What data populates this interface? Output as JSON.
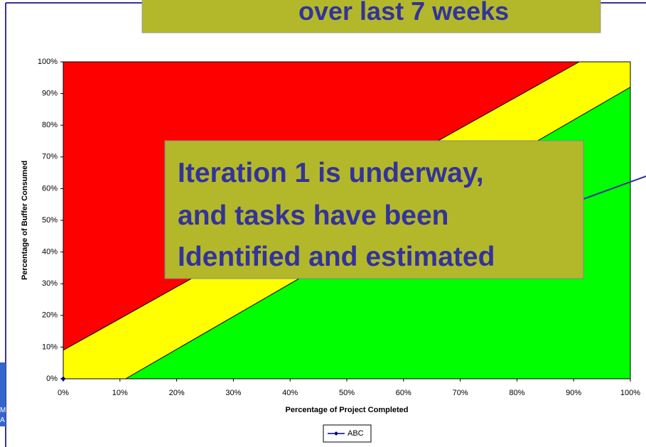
{
  "slide_title": "over last 7 weeks",
  "annotation": [
    "Iteration 1 is underway,",
    "and tasks have been",
    "Identified and estimated"
  ],
  "side_letters": [
    "M",
    "A"
  ],
  "chart_data": {
    "type": "line",
    "xlabel": "Percentage of Project Completed",
    "ylabel": "Percentage of Buffer Consumed",
    "xlim": [
      0,
      100
    ],
    "ylim": [
      0,
      100
    ],
    "xticks": [
      {
        "value": 0,
        "label": "0%"
      },
      {
        "value": 10,
        "label": "10%"
      },
      {
        "value": 20,
        "label": "20%"
      },
      {
        "value": 30,
        "label": "30%"
      },
      {
        "value": 40,
        "label": "40%"
      },
      {
        "value": 50,
        "label": "50%"
      },
      {
        "value": 60,
        "label": "60%"
      },
      {
        "value": 70,
        "label": "70%"
      },
      {
        "value": 80,
        "label": "80%"
      },
      {
        "value": 90,
        "label": "90%"
      },
      {
        "value": 100,
        "label": "100%"
      }
    ],
    "yticks": [
      {
        "value": 0,
        "label": "0%"
      },
      {
        "value": 10,
        "label": "10%"
      },
      {
        "value": 20,
        "label": "20%"
      },
      {
        "value": 30,
        "label": "30%"
      },
      {
        "value": 40,
        "label": "40%"
      },
      {
        "value": 50,
        "label": "50%"
      },
      {
        "value": 60,
        "label": "60%"
      },
      {
        "value": 70,
        "label": "70%"
      },
      {
        "value": 80,
        "label": "80%"
      },
      {
        "value": 90,
        "label": "90%"
      },
      {
        "value": 100,
        "label": "100%"
      }
    ],
    "zone_colors": [
      "#ff0000",
      "#ffff00",
      "#00ff00"
    ],
    "boundaries": [
      {
        "x": [
          0,
          91
        ],
        "values": [
          9,
          100
        ]
      },
      {
        "x": [
          11,
          100
        ],
        "values": [
          0,
          92
        ]
      }
    ],
    "series": [
      {
        "name": "ABC",
        "color": "#000080",
        "x": [
          0
        ],
        "values": [
          0
        ]
      }
    ],
    "legend": "bottom"
  }
}
